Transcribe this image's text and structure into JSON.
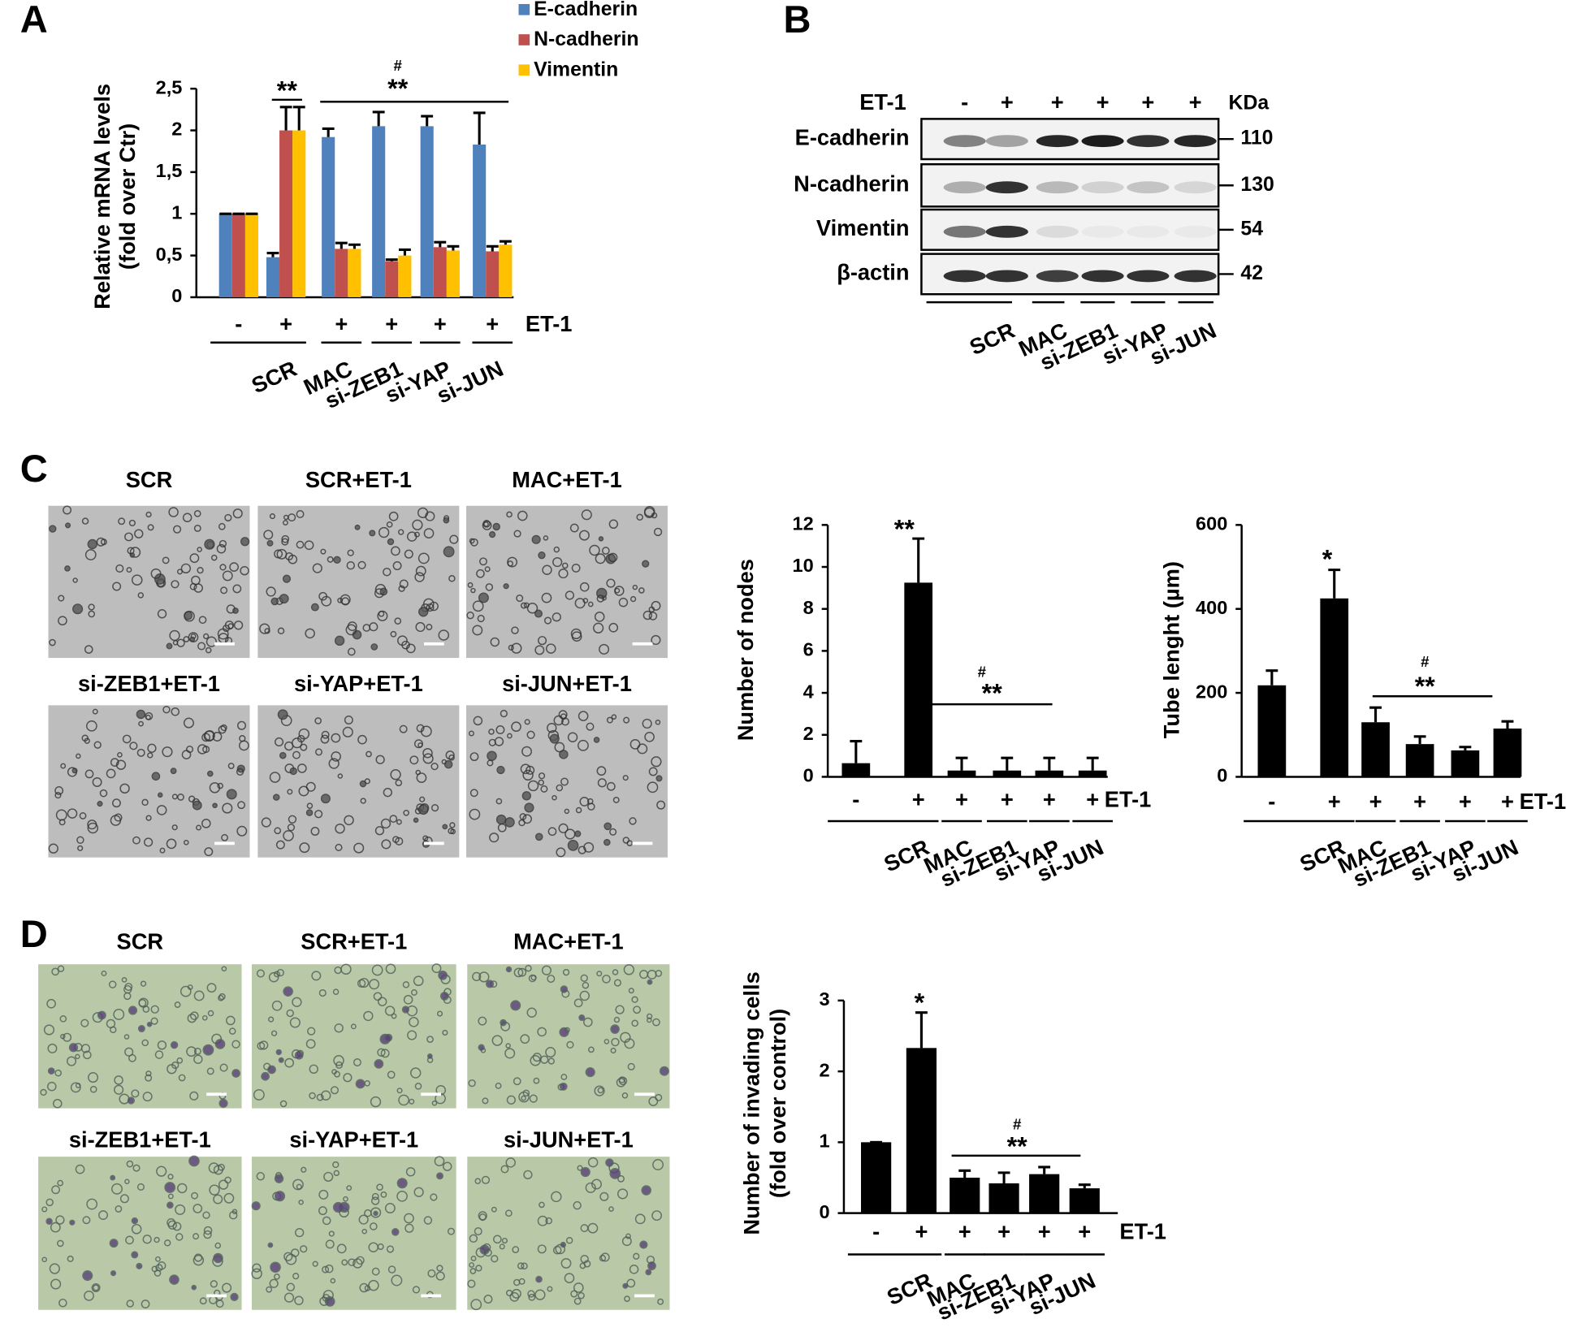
{
  "panel_labels": [
    "A",
    "B",
    "C",
    "D"
  ],
  "chart_data": [
    {
      "type": "bar",
      "y_label": [
        "Relative mRNA levels",
        "(fold over Ctr)"
      ],
      "row_label": "ET-1",
      "categories": [
        "-",
        "+",
        "+",
        "+",
        "+",
        "+"
      ],
      "groups": [
        "SCR",
        "MAC",
        "si-ZEB1",
        "si-YAP",
        "si-JUN"
      ],
      "series": [
        {
          "name": "E-cadherin",
          "color": "#4f81bd",
          "values": [
            1,
            0.48,
            1.92,
            2.05,
            2.05,
            1.83
          ],
          "errors": [
            0,
            0.05,
            0.1,
            0.17,
            0.12,
            0.38
          ]
        },
        {
          "name": "N-cadherin",
          "color": "#c0504d",
          "values": [
            1,
            2.0,
            0.58,
            0.43,
            0.6,
            0.55
          ],
          "errors": [
            0,
            0.28,
            0.07,
            0.02,
            0.06,
            0.06
          ]
        },
        {
          "name": "Vimentin",
          "color": "#ffc000",
          "values": [
            1,
            2.0,
            0.58,
            0.5,
            0.56,
            0.63
          ],
          "errors": [
            0,
            0.28,
            0.05,
            0.07,
            0.05,
            0.04
          ]
        }
      ],
      "ylim": [
        0,
        2.5
      ],
      "yticks": [
        0,
        {
          "value": 0.5,
          "label": "0,5"
        },
        1,
        {
          "value": 1.5,
          "label": "1,5"
        },
        2,
        {
          "value": 2.5,
          "label": "2,5"
        }
      ],
      "annotations": [
        "**",
        "#",
        "**"
      ]
    },
    {
      "type": "bar",
      "y_label": [
        "Number of nodes"
      ],
      "row_label": "ET-1",
      "categories": [
        "-",
        "+",
        "+",
        "+",
        "+",
        "+"
      ],
      "groups": [
        "SCR",
        "MAC",
        "si-ZEB1",
        "si-YAP",
        "si-JUN"
      ],
      "color": "#000000",
      "values": [
        0.65,
        9.25,
        0.3,
        0.3,
        0.3,
        0.3
      ],
      "errors": [
        1.05,
        2.1,
        0.6,
        0.6,
        0.6,
        0.6
      ],
      "ylim": [
        0,
        12
      ],
      "yticks": [
        0,
        2,
        4,
        6,
        8,
        10,
        12
      ],
      "annotations": [
        "**",
        "#",
        "**"
      ]
    },
    {
      "type": "bar",
      "y_label": [
        "Tube lenght (µm)"
      ],
      "row_label": "ET-1",
      "categories": [
        "-",
        "+",
        "+",
        "+",
        "+",
        "+"
      ],
      "groups": [
        "SCR",
        "MAC",
        "si-ZEB1",
        "si-YAP",
        "si-JUN"
      ],
      "color": "#000000",
      "values": [
        218,
        425,
        130,
        78,
        63,
        115
      ],
      "errors": [
        35,
        68,
        35,
        18,
        8,
        17
      ],
      "ylim": [
        0,
        600
      ],
      "yticks": [
        0,
        200,
        400,
        600
      ],
      "annotations": [
        "*",
        "#",
        "**"
      ]
    },
    {
      "type": "bar",
      "y_label": [
        "Number of invading cells",
        "(fold over control)"
      ],
      "row_label": "ET-1",
      "categories": [
        "-",
        "+",
        "+",
        "+",
        "+",
        "+"
      ],
      "groups": [
        "SCR",
        "MAC",
        "si-ZEB1",
        "si-YAP",
        "si-JUN"
      ],
      "color": "#000000",
      "values": [
        1,
        2.33,
        0.5,
        0.42,
        0.55,
        0.35
      ],
      "errors": [
        0,
        0.5,
        0.1,
        0.15,
        0.1,
        0.05
      ],
      "ylim": [
        0,
        3
      ],
      "yticks": [
        0,
        1,
        2,
        3
      ],
      "annotations": [
        "*",
        "#",
        "**"
      ]
    }
  ],
  "blot": {
    "row_label": "ET-1",
    "unit": "KDa",
    "lanes": [
      "-",
      "+",
      "+",
      "+",
      "+",
      "+"
    ],
    "rows": [
      {
        "name": "E-cadherin",
        "kda": "110"
      },
      {
        "name": "N-cadherin",
        "kda": "130"
      },
      {
        "name": "Vimentin",
        "kda": "54"
      },
      {
        "name": "β-actin",
        "kda": "42"
      }
    ],
    "groups": [
      "SCR",
      "MAC",
      "si-ZEB1",
      "si-YAP",
      "si-JUN"
    ]
  },
  "micrographs_c": [
    "SCR",
    "SCR+ET-1",
    "MAC+ET-1",
    "si-ZEB1+ET-1",
    "si-YAP+ET-1",
    "si-JUN+ET-1"
  ],
  "micrographs_d": [
    "SCR",
    "SCR+ET-1",
    "MAC+ET-1",
    "si-ZEB1+ET-1",
    "si-YAP+ET-1",
    "si-JUN+ET-1"
  ]
}
